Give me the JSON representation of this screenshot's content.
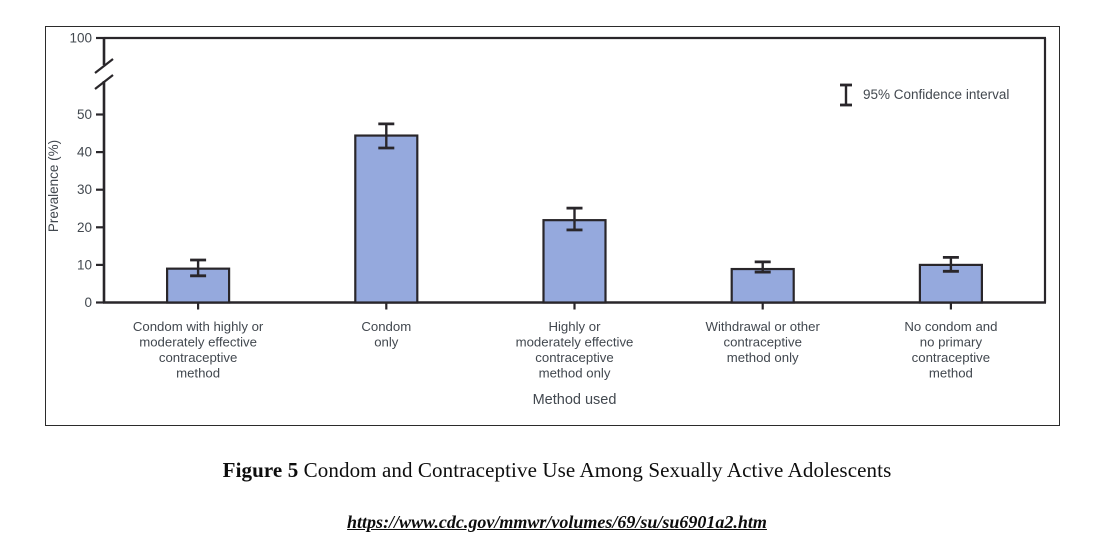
{
  "figure": {
    "caption_label": "Figure 5",
    "caption_title": "Condom and Contraceptive Use Among Sexually Active Adolescents",
    "source_url": "https://www.cdc.gov/mmwr/volumes/69/su/su6901a2.htm"
  },
  "chart_data": {
    "type": "bar",
    "title": "",
    "xlabel": "Method used",
    "ylabel": "Prevalence (%)",
    "legend": {
      "label": "95% Confidence interval",
      "symbol": "error-bar",
      "position": "top-right"
    },
    "grid": false,
    "y_axis": {
      "ticks": [
        0,
        10,
        20,
        30,
        40,
        50
      ],
      "break_after": 50,
      "top_tick": 100,
      "unit": "%"
    },
    "categories": [
      {
        "label": "Condom with highly or moderately effective contraceptive method",
        "lines": [
          "Condom with highly or",
          "moderately effective",
          "contraceptive",
          "method"
        ]
      },
      {
        "label": "Condom only",
        "lines": [
          "Condom",
          "only"
        ]
      },
      {
        "label": "Highly or moderately effective contraceptive method only",
        "lines": [
          "Highly or",
          "moderately effective",
          "contraceptive",
          "method only"
        ]
      },
      {
        "label": "Withdrawal or other contraceptive method only",
        "lines": [
          "Withdrawal or other",
          "contraceptive",
          "method only"
        ]
      },
      {
        "label": "No condom and no primary contraceptive method",
        "lines": [
          "No condom and",
          "no primary",
          "contraceptive",
          "method"
        ]
      }
    ],
    "series": [
      {
        "name": "Prevalence (%)",
        "values": [
          9.0,
          44.4,
          21.9,
          8.9,
          10.0
        ],
        "ci_low": [
          7.1,
          41.1,
          19.3,
          8.1,
          8.3
        ],
        "ci_high": [
          11.3,
          47.5,
          25.1,
          10.8,
          12.0
        ]
      }
    ],
    "colors": {
      "bar_fill": "#95a9dd",
      "bar_stroke": "#29262a",
      "axis": "#29262a",
      "text": "#42484f"
    }
  }
}
